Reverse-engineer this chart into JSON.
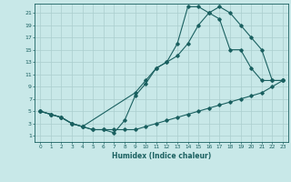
{
  "xlabel": "Humidex (Indice chaleur)",
  "bg_color": "#c8e8e8",
  "grid_color": "#aacece",
  "line_color": "#1a6060",
  "xlim": [
    -0.5,
    23.5
  ],
  "ylim": [
    0,
    22.5
  ],
  "xticks": [
    0,
    1,
    2,
    3,
    4,
    5,
    6,
    7,
    8,
    9,
    10,
    11,
    12,
    13,
    14,
    15,
    16,
    17,
    18,
    19,
    20,
    21,
    22,
    23
  ],
  "yticks": [
    1,
    3,
    5,
    7,
    9,
    11,
    13,
    15,
    17,
    19,
    21
  ],
  "curve1_x": [
    0,
    1,
    2,
    3,
    4,
    5,
    6,
    7,
    8,
    9,
    10,
    11,
    12,
    13,
    14,
    15,
    16,
    17,
    18,
    19,
    20,
    21,
    22,
    23
  ],
  "curve1_y": [
    5,
    4.5,
    4,
    3,
    2.5,
    2,
    2,
    2,
    2,
    2,
    2.5,
    3,
    3.5,
    4,
    4.5,
    5,
    5.5,
    6,
    6.5,
    7,
    7.5,
    8,
    9,
    10
  ],
  "curve2_x": [
    0,
    1,
    2,
    3,
    4,
    9,
    10,
    11,
    12,
    13,
    14,
    15,
    16,
    17,
    18,
    19,
    20,
    21,
    22,
    23
  ],
  "curve2_y": [
    5,
    4.5,
    4,
    3,
    2.5,
    8,
    10,
    12,
    13,
    14,
    16,
    19,
    21,
    22,
    21,
    19,
    17,
    15,
    10,
    10
  ],
  "curve3_x": [
    0,
    1,
    2,
    3,
    4,
    5,
    6,
    7,
    8,
    9,
    10,
    11,
    12,
    13,
    14,
    15,
    16,
    17,
    18,
    19,
    20,
    21,
    22,
    23
  ],
  "curve3_y": [
    5,
    4.5,
    4,
    3,
    2.5,
    2,
    2,
    1.5,
    3.5,
    7.5,
    9.5,
    12,
    13,
    16,
    22,
    22,
    21,
    20,
    15,
    15,
    12,
    10,
    10,
    10
  ]
}
